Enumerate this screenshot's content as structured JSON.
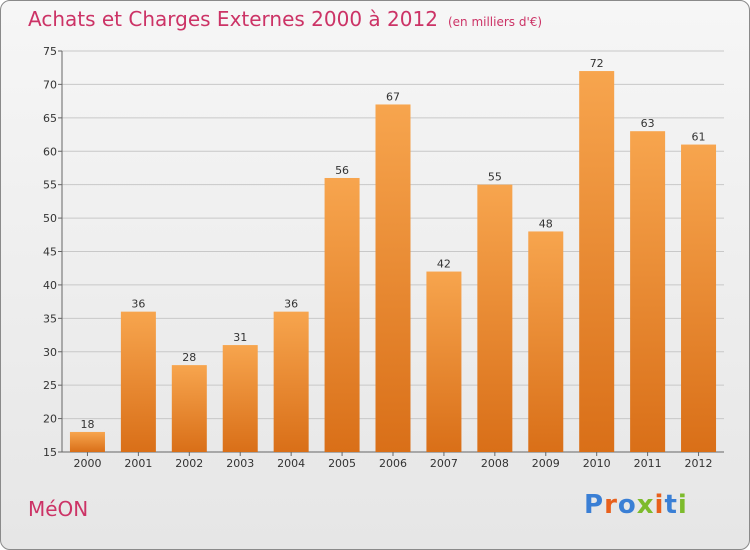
{
  "header": {
    "title": "Achats et Charges Externes 2000 à 2012",
    "unit": "(en milliers d'€)"
  },
  "footer": {
    "commune": "MéON",
    "logo_letters": [
      "P",
      "r",
      "o",
      "x",
      "i",
      "t",
      "i"
    ]
  },
  "colors": {
    "bar_top": "#f7a54e",
    "bar_bottom": "#d96f18",
    "title": "#cc3366",
    "logo": [
      "#3a7fd5",
      "#e8601c",
      "#3a7fd5",
      "#7dbb2c",
      "#e8601c",
      "#3a7fd5",
      "#7dbb2c"
    ]
  },
  "chart_data": {
    "type": "bar",
    "categories": [
      "2000",
      "2001",
      "2002",
      "2003",
      "2004",
      "2005",
      "2006",
      "2007",
      "2008",
      "2009",
      "2010",
      "2011",
      "2012"
    ],
    "values": [
      18,
      36,
      28,
      31,
      36,
      56,
      67,
      42,
      55,
      48,
      72,
      63,
      61
    ],
    "ylim": [
      15,
      75
    ],
    "yticks": [
      15,
      20,
      25,
      30,
      35,
      40,
      45,
      50,
      55,
      60,
      65,
      70,
      75
    ],
    "grid": true,
    "data_labels": true
  }
}
